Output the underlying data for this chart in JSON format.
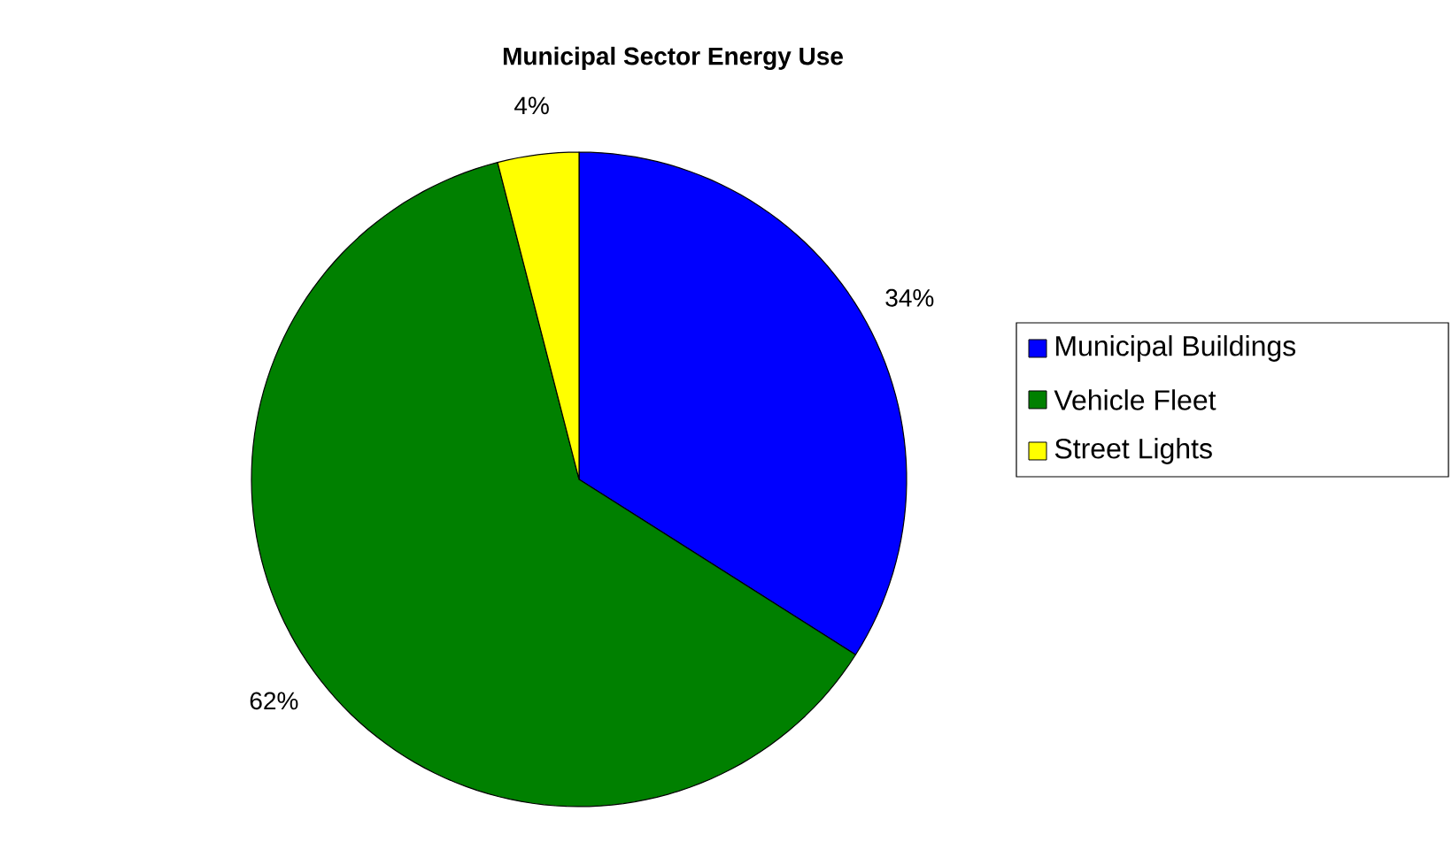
{
  "chart_data": {
    "type": "pie",
    "title": "Municipal Sector Energy Use",
    "categories": [
      "Municipal Buildings",
      "Vehicle Fleet",
      "Street Lights"
    ],
    "values": [
      34,
      62,
      4
    ],
    "colors": [
      "#0000ff",
      "#008000",
      "#ffff00"
    ],
    "value_labels": [
      "34%",
      "62%",
      "4%"
    ],
    "legend": "right"
  }
}
